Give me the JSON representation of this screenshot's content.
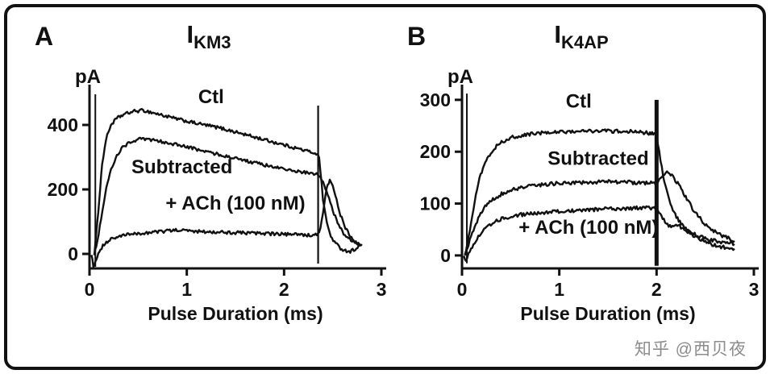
{
  "watermark": {
    "text": "知乎 @西贝夜"
  },
  "chart_data": [
    {
      "type": "line",
      "panel": "A",
      "title_main": "I",
      "title_sub": "KM3",
      "y_unit": "pA",
      "xlabel": "Pulse Duration (ms)",
      "xlim": [
        0,
        3
      ],
      "ylim": [
        -45,
        510
      ],
      "x_ticks": [
        0,
        1,
        2,
        3
      ],
      "y_ticks": [
        0,
        200,
        400
      ],
      "noise": 5,
      "artifact_line": {
        "x": 0.06,
        "y1": -40,
        "y2": 495,
        "width": 2
      },
      "pulse_end_line": {
        "x": 2.35,
        "y1": -30,
        "y2": 460,
        "width": 2.2
      },
      "series": [
        {
          "name": "Ctl",
          "points": [
            [
              0.05,
              0
            ],
            [
              0.07,
              60
            ],
            [
              0.1,
              170
            ],
            [
              0.13,
              280
            ],
            [
              0.17,
              355
            ],
            [
              0.22,
              400
            ],
            [
              0.28,
              420
            ],
            [
              0.35,
              432
            ],
            [
              0.45,
              442
            ],
            [
              0.55,
              445
            ],
            [
              0.65,
              438
            ],
            [
              0.75,
              430
            ],
            [
              0.85,
              422
            ],
            [
              0.95,
              415
            ],
            [
              1.05,
              408
            ],
            [
              1.15,
              402
            ],
            [
              1.25,
              396
            ],
            [
              1.35,
              390
            ],
            [
              1.45,
              382
            ],
            [
              1.55,
              374
            ],
            [
              1.65,
              366
            ],
            [
              1.75,
              358
            ],
            [
              1.85,
              350
            ],
            [
              1.95,
              342
            ],
            [
              2.05,
              334
            ],
            [
              2.15,
              326
            ],
            [
              2.25,
              318
            ],
            [
              2.33,
              312
            ],
            [
              2.36,
              300
            ],
            [
              2.4,
              170
            ],
            [
              2.44,
              95
            ],
            [
              2.48,
              55
            ],
            [
              2.53,
              32
            ],
            [
              2.58,
              18
            ],
            [
              2.63,
              10
            ],
            [
              2.68,
              8
            ],
            [
              2.73,
              15
            ],
            [
              2.78,
              25
            ]
          ]
        },
        {
          "name": "Subtracted",
          "points": [
            [
              0.05,
              0
            ],
            [
              0.08,
              40
            ],
            [
              0.12,
              110
            ],
            [
              0.16,
              185
            ],
            [
              0.21,
              250
            ],
            [
              0.27,
              300
            ],
            [
              0.34,
              330
            ],
            [
              0.42,
              348
            ],
            [
              0.52,
              356
            ],
            [
              0.62,
              354
            ],
            [
              0.72,
              349
            ],
            [
              0.82,
              344
            ],
            [
              0.92,
              337
            ],
            [
              1.02,
              330
            ],
            [
              1.12,
              323
            ],
            [
              1.22,
              316
            ],
            [
              1.32,
              309
            ],
            [
              1.42,
              302
            ],
            [
              1.52,
              295
            ],
            [
              1.62,
              288
            ],
            [
              1.72,
              281
            ],
            [
              1.82,
              274
            ],
            [
              1.92,
              268
            ],
            [
              2.02,
              262
            ],
            [
              2.12,
              257
            ],
            [
              2.22,
              252
            ],
            [
              2.32,
              248
            ],
            [
              2.36,
              242
            ],
            [
              2.4,
              225
            ],
            [
              2.45,
              185
            ],
            [
              2.5,
              135
            ],
            [
              2.55,
              95
            ],
            [
              2.6,
              68
            ],
            [
              2.65,
              50
            ],
            [
              2.7,
              40
            ],
            [
              2.75,
              34
            ],
            [
              2.8,
              30
            ]
          ]
        },
        {
          "name": "+ ACh (100 nM)",
          "points": [
            [
              0.02,
              0
            ],
            [
              0.04,
              -40
            ],
            [
              0.07,
              -15
            ],
            [
              0.1,
              10
            ],
            [
              0.15,
              30
            ],
            [
              0.22,
              45
            ],
            [
              0.3,
              54
            ],
            [
              0.4,
              60
            ],
            [
              0.5,
              63
            ],
            [
              0.6,
              66
            ],
            [
              0.7,
              68
            ],
            [
              0.8,
              71
            ],
            [
              0.9,
              74
            ],
            [
              1.0,
              72
            ],
            [
              1.1,
              70
            ],
            [
              1.2,
              69
            ],
            [
              1.3,
              68
            ],
            [
              1.4,
              67
            ],
            [
              1.5,
              66
            ],
            [
              1.6,
              65
            ],
            [
              1.7,
              64
            ],
            [
              1.8,
              63
            ],
            [
              1.9,
              62
            ],
            [
              2.0,
              61
            ],
            [
              2.1,
              60
            ],
            [
              2.2,
              59
            ],
            [
              2.3,
              58
            ],
            [
              2.36,
              62
            ],
            [
              2.4,
              130
            ],
            [
              2.44,
              205
            ],
            [
              2.47,
              228
            ],
            [
              2.5,
              210
            ],
            [
              2.54,
              165
            ],
            [
              2.58,
              120
            ],
            [
              2.63,
              82
            ],
            [
              2.68,
              55
            ],
            [
              2.73,
              38
            ],
            [
              2.78,
              28
            ]
          ]
        }
      ],
      "labels": [
        {
          "text": "Ctl",
          "x": 1.25,
          "y": 468
        },
        {
          "text": "Subtracted",
          "x": 0.95,
          "y": 250
        },
        {
          "text": "+ ACh (100 nM)",
          "x": 1.5,
          "y": 138
        }
      ]
    },
    {
      "type": "line",
      "panel": "B",
      "title_main": "I",
      "title_sub": "K4AP",
      "y_unit": "pA",
      "xlabel": "Pulse Duration (ms)",
      "xlim": [
        0,
        3
      ],
      "ylim": [
        -25,
        320
      ],
      "x_ticks": [
        0,
        1,
        2,
        3
      ],
      "y_ticks": [
        0,
        100,
        200,
        300
      ],
      "noise": 3.5,
      "artifact_line": {
        "x": 0.05,
        "y1": -15,
        "y2": 312,
        "width": 2
      },
      "pulse_end_line": {
        "x": 2.0,
        "y1": -20,
        "y2": 300,
        "width": 5
      },
      "series": [
        {
          "name": "Ctl",
          "points": [
            [
              0.03,
              0
            ],
            [
              0.08,
              50
            ],
            [
              0.13,
              105
            ],
            [
              0.18,
              150
            ],
            [
              0.25,
              185
            ],
            [
              0.33,
              207
            ],
            [
              0.42,
              220
            ],
            [
              0.52,
              228
            ],
            [
              0.62,
              232
            ],
            [
              0.72,
              234
            ],
            [
              0.82,
              236
            ],
            [
              0.92,
              237
            ],
            [
              1.02,
              238
            ],
            [
              1.12,
              239
            ],
            [
              1.22,
              240
            ],
            [
              1.32,
              240
            ],
            [
              1.42,
              241
            ],
            [
              1.52,
              240
            ],
            [
              1.62,
              239
            ],
            [
              1.72,
              239
            ],
            [
              1.82,
              238
            ],
            [
              1.92,
              236
            ],
            [
              2.0,
              234
            ],
            [
              2.04,
              185
            ],
            [
              2.08,
              140
            ],
            [
              2.13,
              105
            ],
            [
              2.18,
              82
            ],
            [
              2.24,
              65
            ],
            [
              2.3,
              52
            ],
            [
              2.38,
              42
            ],
            [
              2.46,
              35
            ],
            [
              2.55,
              30
            ],
            [
              2.65,
              26
            ],
            [
              2.75,
              23
            ],
            [
              2.8,
              22
            ]
          ]
        },
        {
          "name": "Subtracted",
          "points": [
            [
              0.03,
              0
            ],
            [
              0.08,
              28
            ],
            [
              0.13,
              55
            ],
            [
              0.18,
              78
            ],
            [
              0.25,
              97
            ],
            [
              0.33,
              110
            ],
            [
              0.42,
              120
            ],
            [
              0.52,
              127
            ],
            [
              0.62,
              131
            ],
            [
              0.72,
              134
            ],
            [
              0.82,
              136
            ],
            [
              0.92,
              138
            ],
            [
              1.02,
              139
            ],
            [
              1.12,
              140
            ],
            [
              1.22,
              141
            ],
            [
              1.32,
              141
            ],
            [
              1.42,
              142
            ],
            [
              1.52,
              142
            ],
            [
              1.62,
              141
            ],
            [
              1.72,
              141
            ],
            [
              1.82,
              140
            ],
            [
              1.92,
              140
            ],
            [
              2.0,
              139
            ],
            [
              2.04,
              150
            ],
            [
              2.08,
              158
            ],
            [
              2.12,
              160
            ],
            [
              2.17,
              152
            ],
            [
              2.23,
              135
            ],
            [
              2.3,
              112
            ],
            [
              2.38,
              88
            ],
            [
              2.46,
              68
            ],
            [
              2.55,
              52
            ],
            [
              2.65,
              40
            ],
            [
              2.75,
              32
            ],
            [
              2.8,
              28
            ]
          ]
        },
        {
          "name": "+ ACh (100 nM)",
          "points": [
            [
              0.02,
              0
            ],
            [
              0.04,
              -12
            ],
            [
              0.08,
              8
            ],
            [
              0.13,
              25
            ],
            [
              0.18,
              40
            ],
            [
              0.25,
              54
            ],
            [
              0.33,
              64
            ],
            [
              0.42,
              71
            ],
            [
              0.52,
              76
            ],
            [
              0.62,
              79
            ],
            [
              0.72,
              81
            ],
            [
              0.82,
              83
            ],
            [
              0.92,
              84
            ],
            [
              1.02,
              85
            ],
            [
              1.12,
              86
            ],
            [
              1.22,
              87
            ],
            [
              1.32,
              88
            ],
            [
              1.42,
              89
            ],
            [
              1.52,
              90
            ],
            [
              1.62,
              90
            ],
            [
              1.72,
              91
            ],
            [
              1.82,
              92
            ],
            [
              1.92,
              92
            ],
            [
              2.0,
              92
            ],
            [
              2.05,
              75
            ],
            [
              2.1,
              62
            ],
            [
              2.15,
              55
            ],
            [
              2.2,
              60
            ],
            [
              2.25,
              55
            ],
            [
              2.32,
              45
            ],
            [
              2.4,
              36
            ],
            [
              2.48,
              28
            ],
            [
              2.56,
              22
            ],
            [
              2.65,
              17
            ],
            [
              2.75,
              14
            ],
            [
              2.8,
              13
            ]
          ]
        }
      ],
      "labels": [
        {
          "text": "Ctl",
          "x": 1.2,
          "y": 285
        },
        {
          "text": "Subtracted",
          "x": 1.4,
          "y": 175
        },
        {
          "text": "+ ACh (100 nM)",
          "x": 1.3,
          "y": 42
        }
      ]
    }
  ]
}
